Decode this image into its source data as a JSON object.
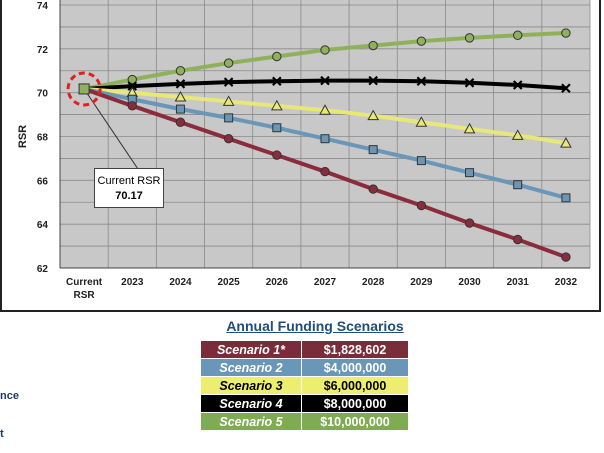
{
  "chart_data": {
    "type": "line",
    "ylabel": "RSR",
    "ylim": [
      62,
      74
    ],
    "yticks": [
      62,
      64,
      66,
      68,
      70,
      72,
      74
    ],
    "categories": [
      "Current RSR",
      "2023",
      "2024",
      "2025",
      "2026",
      "2027",
      "2028",
      "2029",
      "2030",
      "2031",
      "2032"
    ],
    "grid": true,
    "series": [
      {
        "color": "#8fb15b",
        "marker": "circle",
        "values": [
          70.17,
          70.6,
          71.0,
          71.35,
          71.65,
          71.95,
          72.15,
          72.35,
          72.5,
          72.62,
          72.72
        ]
      },
      {
        "color": "#000000",
        "marker": "x",
        "values": [
          70.17,
          70.3,
          70.4,
          70.48,
          70.52,
          70.55,
          70.55,
          70.52,
          70.45,
          70.35,
          70.2
        ]
      },
      {
        "color": "#e8e87a",
        "marker": "triangle",
        "values": [
          70.17,
          70.0,
          69.8,
          69.6,
          69.4,
          69.2,
          68.95,
          68.65,
          68.35,
          68.05,
          67.7
        ]
      },
      {
        "color": "#6a97b7",
        "marker": "square",
        "values": [
          70.17,
          69.7,
          69.25,
          68.85,
          68.4,
          67.9,
          67.4,
          66.9,
          66.35,
          65.8,
          65.2
        ]
      },
      {
        "color": "#8b2c3c",
        "marker": "circle",
        "values": [
          70.17,
          69.4,
          68.65,
          67.9,
          67.15,
          66.4,
          65.6,
          64.85,
          64.05,
          63.3,
          62.5
        ]
      }
    ],
    "annotation": {
      "label": "Current RSR",
      "value": "70.17"
    }
  },
  "table": {
    "title": "Annual Funding Scenarios",
    "rows": [
      {
        "name": "Scenario 1*",
        "amount": "$1,828,602",
        "bg": "#7b2c3b",
        "fg": "#ffffff"
      },
      {
        "name": "Scenario 2",
        "amount": "$4,000,000",
        "bg": "#6a97b7",
        "fg": "#ffffff"
      },
      {
        "name": "Scenario 3",
        "amount": "$6,000,000",
        "bg": "#eded72",
        "fg": "#000000"
      },
      {
        "name": "Scenario 4",
        "amount": "$8,000,000",
        "bg": "#000000",
        "fg": "#ffffff"
      },
      {
        "name": "Scenario 5",
        "amount": "$10,000,000",
        "bg": "#7eab53",
        "fg": "#ffffff"
      }
    ]
  },
  "fragments": [
    "nce",
    "t"
  ]
}
